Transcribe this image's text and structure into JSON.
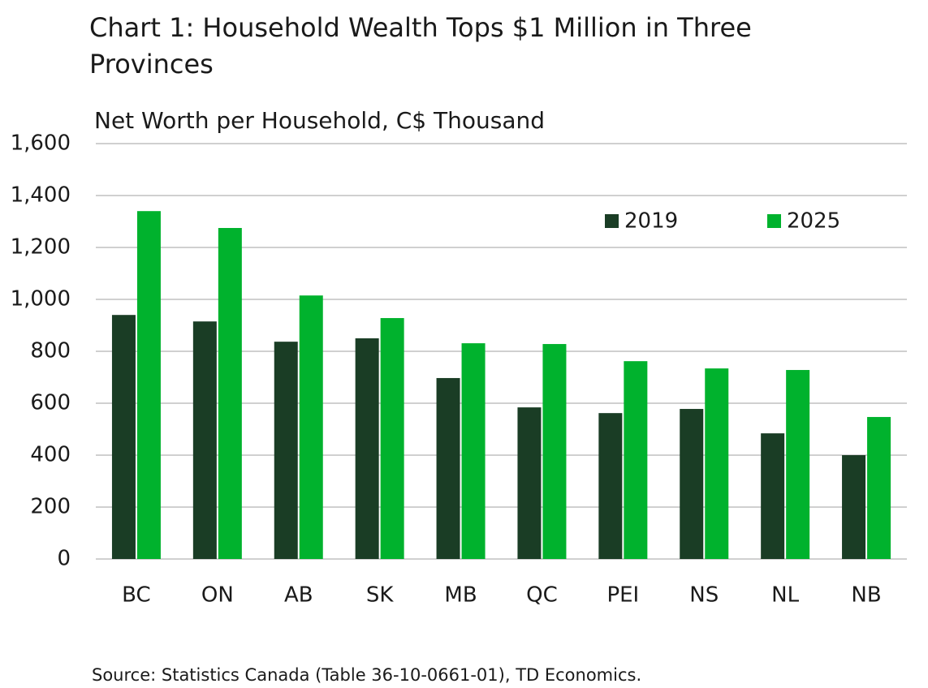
{
  "chart_data": {
    "type": "bar",
    "title": "Chart 1: Household Wealth Tops $1 Million in Three Provinces",
    "subtitle": "Net Worth per Household, C$ Thousand",
    "source": "Source: Statistics Canada (Table 36-10-0661-01), TD Economics.",
    "categories": [
      "BC",
      "ON",
      "AB",
      "SK",
      "MB",
      "QC",
      "PEI",
      "NS",
      "NL",
      "NB"
    ],
    "series": [
      {
        "name": "2019",
        "color": "#1a3d25",
        "values": [
          940,
          915,
          837,
          850,
          697,
          584,
          562,
          578,
          484,
          400
        ]
      },
      {
        "name": "2025",
        "color": "#00b22d",
        "values": [
          1340,
          1275,
          1015,
          928,
          831,
          828,
          762,
          734,
          728,
          547
        ]
      }
    ],
    "ylim": [
      0,
      1600
    ],
    "yticks": [
      0,
      200,
      400,
      600,
      800,
      {
        "value": 1000,
        "label": "1,000"
      },
      {
        "value": 1200,
        "label": "1,200"
      },
      {
        "value": 1400,
        "label": "1,400"
      },
      {
        "value": 1600,
        "label": "1,600"
      }
    ],
    "grid": true,
    "legend": "top-right"
  }
}
